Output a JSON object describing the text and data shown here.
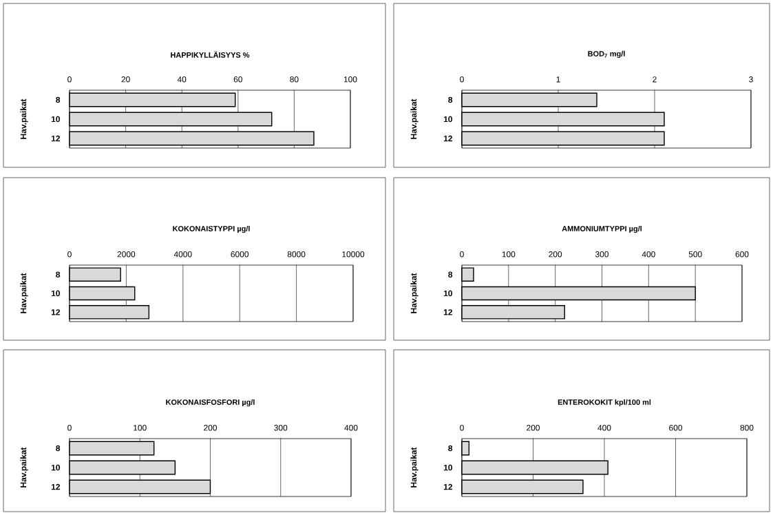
{
  "chart_data": [
    {
      "type": "bar",
      "orientation": "horizontal",
      "title": "HAPPIKYLLÄISYYS %",
      "ylabel": "Hav.paikat",
      "categories": [
        "8",
        "10",
        "12"
      ],
      "values": [
        59,
        72,
        87
      ],
      "color": "#d9d9d9",
      "xlim": [
        0,
        100
      ],
      "xticks": [
        0,
        20,
        40,
        60,
        80,
        100
      ],
      "grid": "x"
    },
    {
      "type": "bar",
      "orientation": "horizontal",
      "title": "BOD$_{7}$ mg/l",
      "ylabel": "Hav.paikat",
      "categories": [
        "8",
        "10",
        "12"
      ],
      "values": [
        1.4,
        2.1,
        2.1
      ],
      "color": "#d9d9d9",
      "xlim": [
        0,
        3
      ],
      "xticks": [
        0,
        1,
        2,
        3
      ],
      "grid": "x"
    },
    {
      "type": "bar",
      "orientation": "horizontal",
      "title": "KOKONAISTYPPI µg/l",
      "ylabel": "Hav.paikat",
      "categories": [
        "8",
        "10",
        "12"
      ],
      "values": [
        1800,
        2300,
        2800
      ],
      "color": "#d9d9d9",
      "xlim": [
        0,
        10000
      ],
      "xticks": [
        0,
        2000,
        4000,
        6000,
        8000,
        10000
      ],
      "grid": "x"
    },
    {
      "type": "bar",
      "orientation": "horizontal",
      "title": "AMMONIUMTYPPI µg/l",
      "ylabel": "Hav.paikat",
      "categories": [
        "8",
        "10",
        "12"
      ],
      "values": [
        25,
        500,
        220
      ],
      "color": "#d9d9d9",
      "xlim": [
        0,
        600
      ],
      "xticks": [
        0,
        100,
        200,
        300,
        400,
        500,
        600
      ],
      "grid": "x"
    },
    {
      "type": "bar",
      "orientation": "horizontal",
      "title": "KOKONAISFOSFORI µg/l",
      "ylabel": "Hav.paikat",
      "categories": [
        "8",
        "10",
        "12"
      ],
      "values": [
        120,
        150,
        200
      ],
      "color": "#d9d9d9",
      "xlim": [
        0,
        400
      ],
      "xticks": [
        0,
        100,
        200,
        300,
        400
      ],
      "grid": "x"
    },
    {
      "type": "bar",
      "orientation": "horizontal",
      "title": "ENTEROKOKIT kpl/100 ml",
      "ylabel": "Hav.paikat",
      "categories": [
        "8",
        "10",
        "12"
      ],
      "values": [
        20,
        410,
        340
      ],
      "color": "#d9d9d9",
      "xlim": [
        0,
        800
      ],
      "xticks": [
        0,
        200,
        400,
        600,
        800
      ],
      "grid": "x"
    }
  ]
}
